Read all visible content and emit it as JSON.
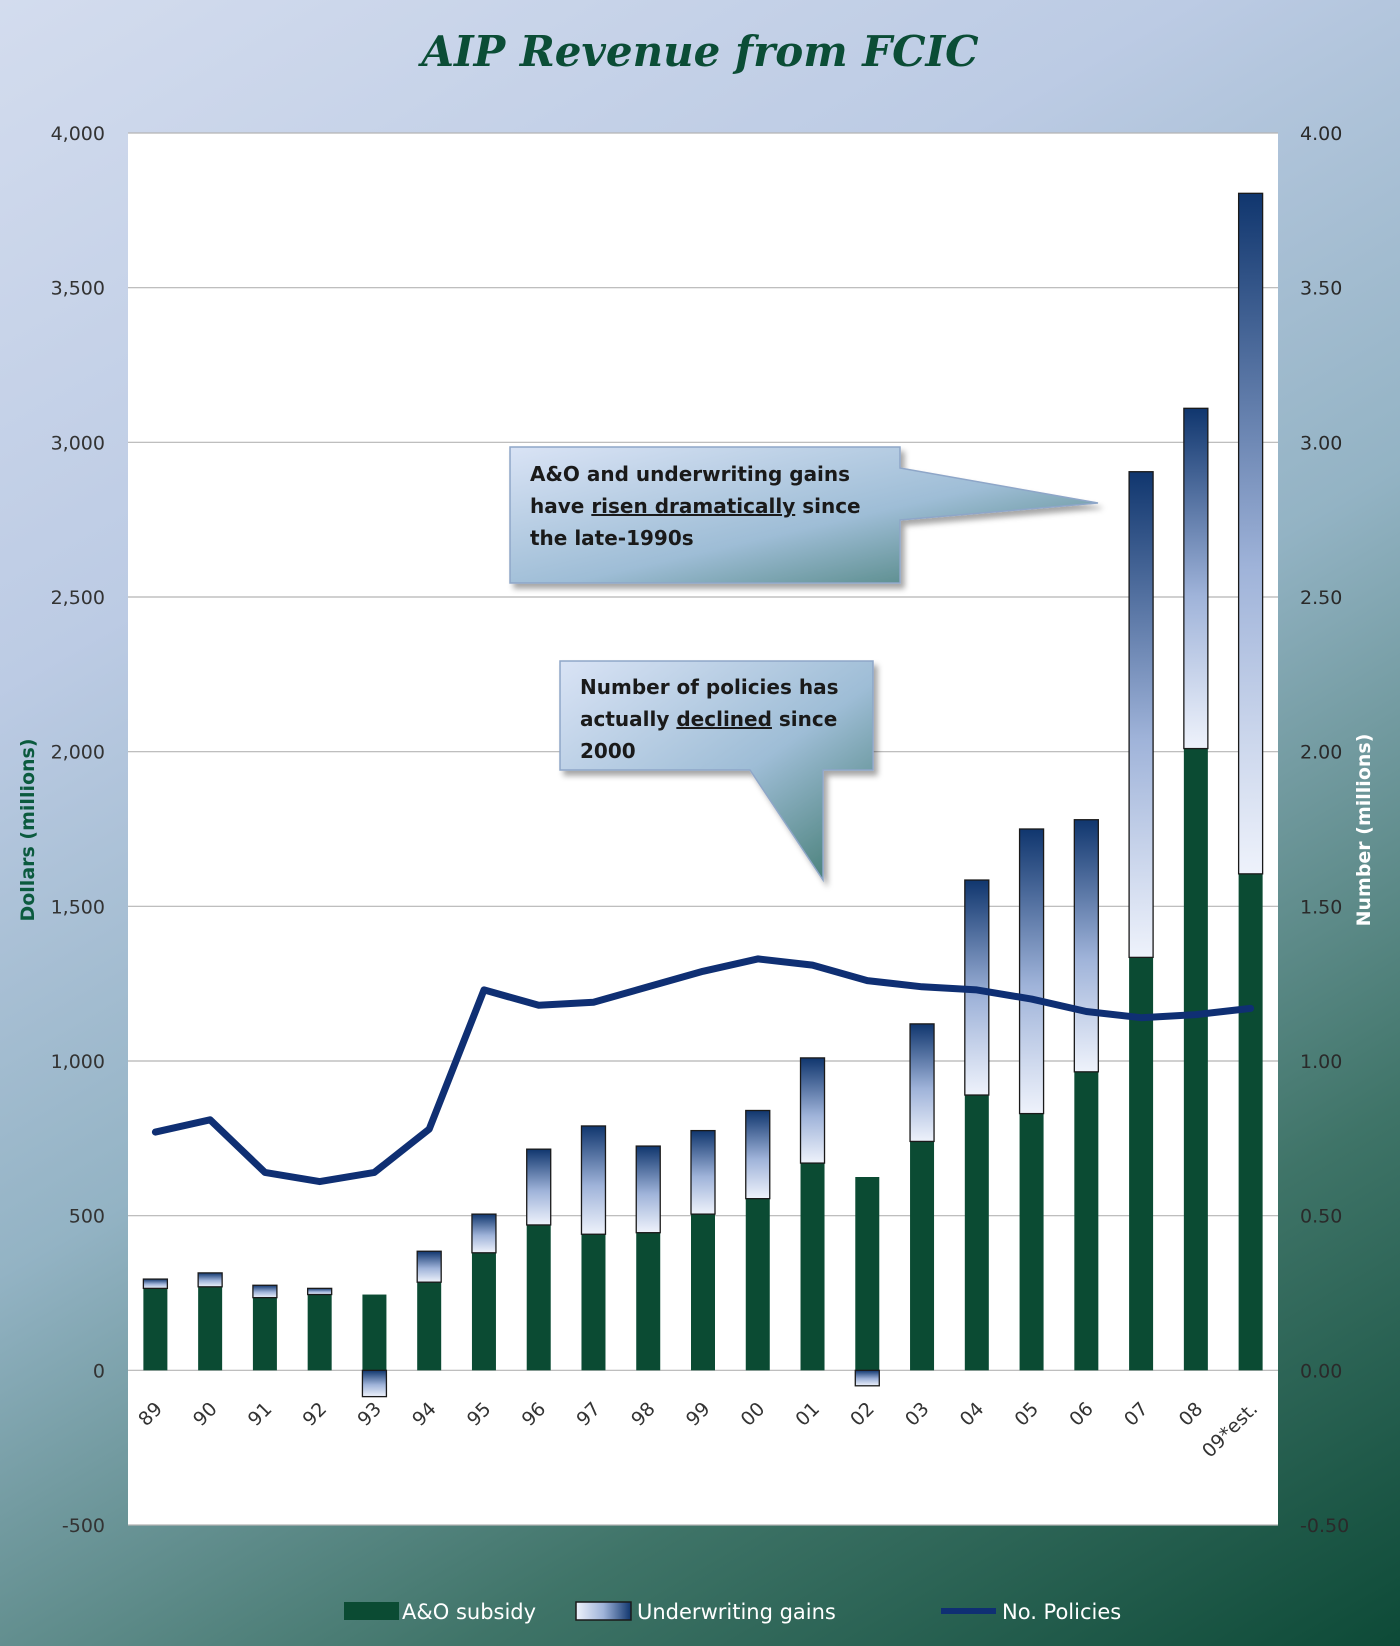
{
  "chart_data": {
    "type": "bar",
    "title": "AIP Revenue from FCIC",
    "categories": [
      "89",
      "90",
      "91",
      "92",
      "93",
      "94",
      "95",
      "96",
      "97",
      "98",
      "99",
      "00",
      "01",
      "02",
      "03",
      "04",
      "05",
      "06",
      "07",
      "08",
      "09*est."
    ],
    "y_left": {
      "label": "Dollars (millions)",
      "range": [
        -500,
        4000
      ],
      "ticks": [
        4000,
        3500,
        3000,
        2500,
        2000,
        1500,
        1000,
        500,
        0,
        -500
      ],
      "tick_labels": [
        "4,000",
        "3,500",
        "3,000",
        "2,500",
        "2,000",
        "1,500",
        "1,000",
        "500",
        "0",
        "-500"
      ]
    },
    "y_right": {
      "label": "Number (millions)",
      "range": [
        -0.5,
        4.0
      ],
      "ticks": [
        4.0,
        3.5,
        3.0,
        2.5,
        2.0,
        1.5,
        1.0,
        0.5,
        0.0,
        -0.5
      ],
      "tick_labels": [
        "4.00",
        "3.50",
        "3.00",
        "2.50",
        "2.00",
        "1.50",
        "1.00",
        "0.50",
        "0.00",
        "-0.50"
      ]
    },
    "series": [
      {
        "name": "A&O subsidy",
        "kind": "stacked-bar",
        "color": "#0b4b33",
        "values": [
          265,
          270,
          235,
          245,
          245,
          285,
          380,
          470,
          440,
          445,
          505,
          555,
          670,
          625,
          740,
          890,
          830,
          965,
          1335,
          2010,
          1605
        ]
      },
      {
        "name": "Underwriting gains",
        "kind": "stacked-bar",
        "gradient": [
          "#eef2fb",
          "#10366e"
        ],
        "values": [
          30,
          45,
          40,
          20,
          -85,
          100,
          125,
          245,
          350,
          280,
          270,
          285,
          340,
          -50,
          380,
          695,
          920,
          815,
          1570,
          1100,
          2200
        ]
      },
      {
        "name": "No. Policies",
        "kind": "line",
        "axis": "right",
        "color": "#0f2f73",
        "values": [
          0.77,
          0.81,
          0.64,
          0.61,
          0.64,
          0.78,
          1.23,
          1.18,
          1.19,
          1.24,
          1.29,
          1.33,
          1.31,
          1.26,
          1.24,
          1.23,
          1.2,
          1.16,
          1.14,
          1.15,
          1.17
        ]
      }
    ],
    "grid": "horizontal",
    "legend": "bottom-center",
    "annotations": [
      {
        "lines": [
          "A&O and underwriting gains",
          "have |risen dramatically| since",
          "the late-1990s"
        ]
      },
      {
        "lines": [
          "Number of policies has",
          "actually |declined| since",
          "2000"
        ]
      }
    ]
  },
  "colors": {
    "title": "#0b4d36",
    "left_axis_title": "#0b5a3e",
    "right_axis_title": "#ffffff",
    "gridline": "#b5b5b5",
    "legend_text": "#ffffff",
    "tick_text_left": "#333333",
    "tick_text_right": "#2a2a2a"
  }
}
